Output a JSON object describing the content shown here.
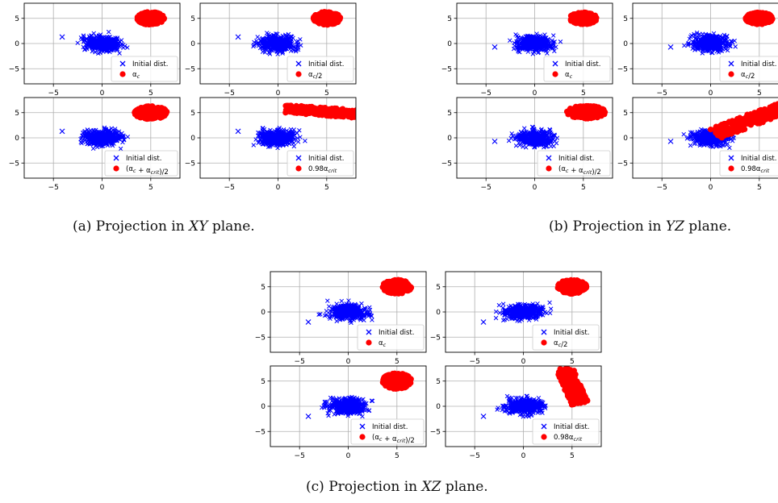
{
  "figure": {
    "captions": [
      {
        "id": "a",
        "prefix": "(a) Projection in ",
        "plane": "XY",
        "suffix": " plane."
      },
      {
        "id": "b",
        "prefix": "(b) Projection in ",
        "plane": "YZ",
        "suffix": " plane."
      },
      {
        "id": "c",
        "prefix": "(c) Projection in ",
        "plane": "XZ",
        "suffix": " plane."
      }
    ]
  },
  "colors": {
    "initial": "#0000ff",
    "final": "#ff0000",
    "grid": "#b0b0b0",
    "axes": "#000000"
  },
  "chart_data": [
    {
      "group": "a",
      "type": "scatter",
      "plane": "XY",
      "xlim": [
        -8,
        8
      ],
      "ylim": [
        -8,
        8
      ],
      "xticks": [
        -5,
        0,
        5
      ],
      "yticks": [
        -5,
        0,
        5
      ],
      "grid": true,
      "panels": [
        {
          "legend": [
            "Initial dist.",
            "α_c"
          ],
          "initial": {
            "center": [
              0,
              0
            ],
            "rx": 3.6,
            "ry": 2.8,
            "outlier": [
              -4.1,
              1.3
            ]
          },
          "final": {
            "shape": "ellipse",
            "center": [
              5,
              5
            ],
            "rx": 1.4,
            "ry": 1.3
          }
        },
        {
          "legend": [
            "Initial dist.",
            "α_c/2"
          ],
          "initial": {
            "center": [
              0,
              0
            ],
            "rx": 3.6,
            "ry": 2.8,
            "outlier": [
              -4.1,
              1.3
            ]
          },
          "final": {
            "shape": "ellipse",
            "center": [
              5,
              5
            ],
            "rx": 1.4,
            "ry": 1.3
          }
        },
        {
          "legend": [
            "Initial dist.",
            "(α_c + α_crit)/2"
          ],
          "initial": {
            "center": [
              0,
              0
            ],
            "rx": 3.6,
            "ry": 2.8,
            "outlier": [
              -4.1,
              1.3
            ]
          },
          "final": {
            "shape": "ellipse",
            "center": [
              5,
              5
            ],
            "rx": 1.7,
            "ry": 1.3
          }
        },
        {
          "legend": [
            "Initial dist.",
            "0.98α_crit"
          ],
          "initial": {
            "center": [
              0,
              0
            ],
            "rx": 3.6,
            "ry": 2.8,
            "outlier": [
              -4.1,
              1.3
            ]
          },
          "final": {
            "shape": "band",
            "from": [
              0.7,
              5.8
            ],
            "to": [
              9,
              4.6
            ],
            "width": 1.6
          }
        }
      ]
    },
    {
      "group": "b",
      "type": "scatter",
      "plane": "YZ",
      "xlim": [
        -8,
        8
      ],
      "ylim": [
        -8,
        8
      ],
      "xticks": [
        -5,
        0,
        5
      ],
      "yticks": [
        -5,
        0,
        5
      ],
      "grid": true,
      "panels": [
        {
          "legend": [
            "Initial dist.",
            "α_c"
          ],
          "initial": {
            "center": [
              0,
              0
            ],
            "rx": 3.6,
            "ry": 2.8,
            "outlier": [
              -4.1,
              -0.7
            ]
          },
          "final": {
            "shape": "ellipse",
            "center": [
              5,
              5
            ],
            "rx": 1.4,
            "ry": 1.2
          }
        },
        {
          "legend": [
            "Initial dist.",
            "α_c/2"
          ],
          "initial": {
            "center": [
              0,
              0
            ],
            "rx": 3.6,
            "ry": 2.8,
            "outlier": [
              -4.1,
              -0.7
            ]
          },
          "final": {
            "shape": "ellipse",
            "center": [
              5,
              5
            ],
            "rx": 1.4,
            "ry": 1.2
          }
        },
        {
          "legend": [
            "Initial dist.",
            "(α_c + α_crit)/2"
          ],
          "initial": {
            "center": [
              0,
              0
            ],
            "rx": 3.6,
            "ry": 2.8,
            "outlier": [
              -4.1,
              -0.7
            ]
          },
          "final": {
            "shape": "ellipse",
            "center": [
              5.3,
              5.1
            ],
            "rx": 2.0,
            "ry": 1.3
          }
        },
        {
          "legend": [
            "Initial dist.",
            "0.98α_crit"
          ],
          "initial": {
            "center": [
              0,
              0
            ],
            "rx": 3.6,
            "ry": 2.8,
            "outlier": [
              -4.1,
              -0.7
            ]
          },
          "final": {
            "shape": "band",
            "from": [
              0.5,
              0.8
            ],
            "to": [
              8.5,
              6.8
            ],
            "width": 2.2
          }
        }
      ]
    },
    {
      "group": "c",
      "type": "scatter",
      "plane": "XZ",
      "xlim": [
        -8,
        8
      ],
      "ylim": [
        -8,
        8
      ],
      "xticks": [
        -5,
        0,
        5
      ],
      "yticks": [
        -5,
        0,
        5
      ],
      "grid": true,
      "panels": [
        {
          "legend": [
            "Initial dist.",
            "α_c"
          ],
          "initial": {
            "center": [
              0,
              0
            ],
            "rx": 3.6,
            "ry": 2.8,
            "outlier": [
              -4.1,
              -2.0
            ]
          },
          "final": {
            "shape": "ellipse",
            "center": [
              5,
              5
            ],
            "rx": 1.5,
            "ry": 1.4
          }
        },
        {
          "legend": [
            "Initial dist.",
            "α_c/2"
          ],
          "initial": {
            "center": [
              0,
              0
            ],
            "rx": 3.6,
            "ry": 2.8,
            "outlier": [
              -4.1,
              -2.0
            ]
          },
          "final": {
            "shape": "ellipse",
            "center": [
              5,
              5
            ],
            "rx": 1.5,
            "ry": 1.4
          }
        },
        {
          "legend": [
            "Initial dist.",
            "(α_c + α_crit)/2"
          ],
          "initial": {
            "center": [
              0,
              0
            ],
            "rx": 3.6,
            "ry": 2.8,
            "outlier": [
              -4.1,
              -2.0
            ]
          },
          "final": {
            "shape": "ellipse",
            "center": [
              5,
              5
            ],
            "rx": 1.5,
            "ry": 1.6
          }
        },
        {
          "legend": [
            "Initial dist.",
            "0.98α_crit"
          ],
          "initial": {
            "center": [
              0,
              0
            ],
            "rx": 3.6,
            "ry": 2.8,
            "outlier": [
              -4.1,
              -2.0
            ]
          },
          "final": {
            "shape": "band",
            "from": [
              4.2,
              7.5
            ],
            "to": [
              5.8,
              0.5
            ],
            "width": 1.8
          }
        }
      ]
    }
  ]
}
